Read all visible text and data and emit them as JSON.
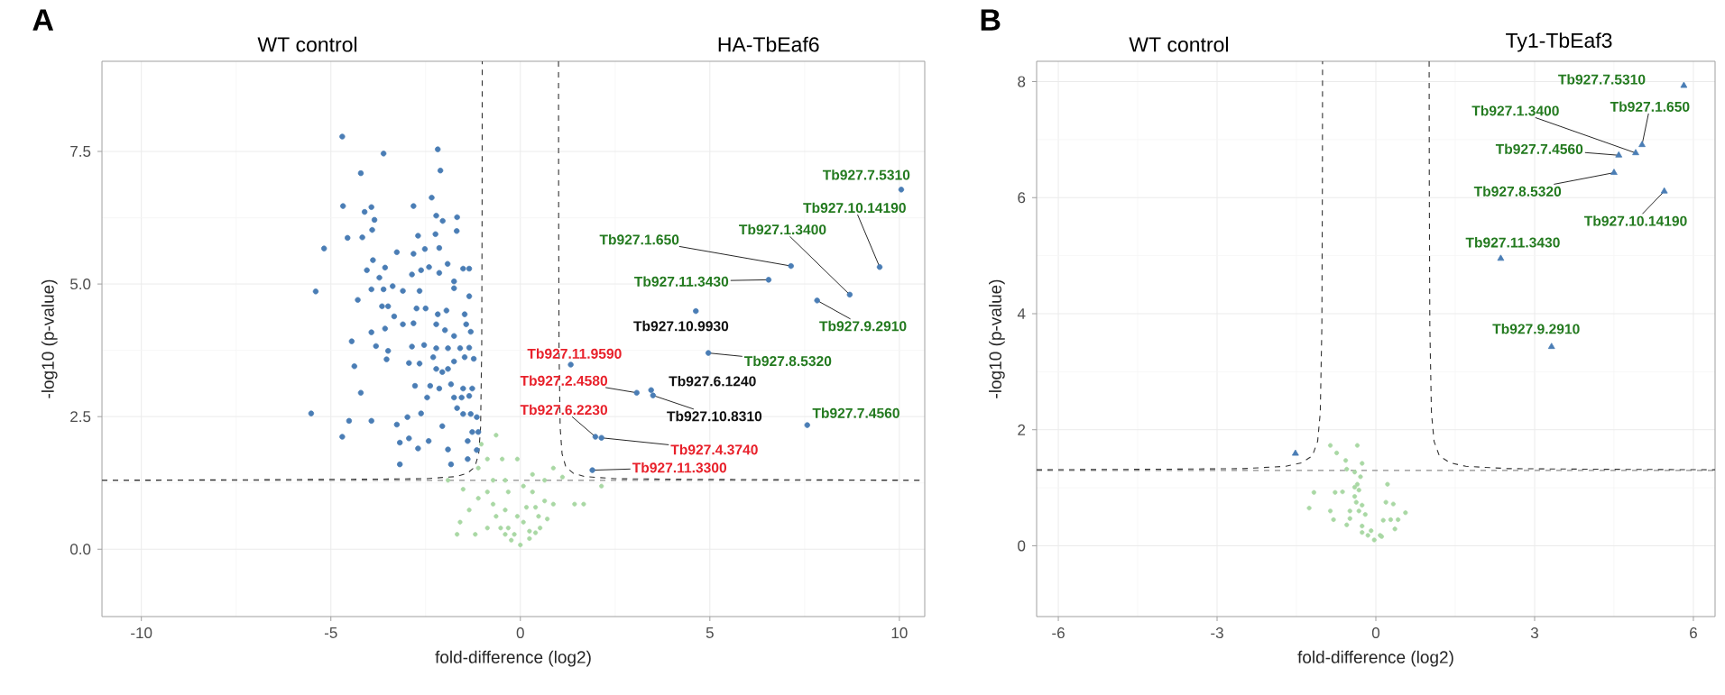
{
  "chart_data": [
    {
      "type": "scatter",
      "xlabel": "fold-difference (log2)",
      "ylabel": "-log10 (p-value)",
      "xlim": [
        -11.04,
        10.67
      ],
      "ylim": [
        -1.27,
        9.2
      ],
      "xticks": [
        -10,
        -5,
        0,
        5,
        10
      ],
      "yticks": [
        {
          "value": 0,
          "label": "0.0"
        },
        {
          "value": 2.5,
          "label": "2.5"
        },
        {
          "value": 5,
          "label": "5.0"
        },
        {
          "value": 7.5,
          "label": "7.5"
        }
      ],
      "grid": true,
      "ref_lines": [
        {
          "axis": "y",
          "value": 1.3,
          "color": "#8c8c8c",
          "line_style": "dashed"
        }
      ],
      "series": [
        {
          "marker": "circle",
          "color": "#a9d8a4",
          "x": [
            -0.4,
            -0.24,
            0.0,
            0.24,
            0.4,
            0.52,
            -0.52,
            -0.64,
            -0.72,
            -0.4,
            -0.08,
            0.16,
            0.4,
            0.64,
            0.32,
            0.08,
            -0.32,
            -0.87,
            -1.11,
            -1.35,
            -1.59,
            -1.51,
            -0.72,
            -0.4,
            0.32,
            0.64,
            0.87,
            1.11,
            1.43,
            1.67,
            2.14,
            -1.67,
            -1.19,
            -0.87,
            0.08,
            0.48,
            -0.32,
            -0.16,
            0.24,
            -0.64,
            -0.87,
            -1.03,
            -0.08,
            -1.11,
            -1.91,
            0.87,
            0.71,
            -0.48
          ],
          "values": [
            0.28,
            0.17,
            0.08,
            0.2,
            0.31,
            0.4,
            0.4,
            0.62,
            0.85,
            0.74,
            0.62,
            0.79,
            0.79,
            0.91,
            1.08,
            1.19,
            1.08,
            1.08,
            0.96,
            0.74,
            0.51,
            1.13,
            1.3,
            1.3,
            1.41,
            1.3,
            1.53,
            1.36,
            0.85,
            0.85,
            1.19,
            0.28,
            0.28,
            0.4,
            0.51,
            0.62,
            0.4,
            0.28,
            0.34,
            2.15,
            1.7,
            1.98,
            1.7,
            1.53,
            1.3,
            0.85,
            0.57,
            1.7
          ]
        },
        {
          "marker": "circle",
          "color": "#4a7db5",
          "x": [
            -4.7,
            -3.61,
            -2.18,
            -2.11,
            -4.21,
            -2.34,
            -4.68,
            -3.93,
            -2.82,
            -4.11,
            -3.85,
            -2.22,
            -2.05,
            -1.67,
            -3.91,
            -4.56,
            -4.17,
            -2.7,
            -2.24,
            -1.68,
            -5.18,
            -3.26,
            -2.82,
            -2.52,
            -2.14,
            -3.89,
            -4.05,
            -3.57,
            -2.62,
            -2.41,
            -1.92,
            -1.51,
            -1.35,
            -3.72,
            -2.86,
            -2.14,
            -5.4,
            -4.29,
            -3.93,
            -3.61,
            -3.37,
            -3.1,
            -2.66,
            -1.75,
            -1.75,
            -1.35,
            -3.65,
            -3.49,
            -2.74,
            -2.5,
            -2.18,
            -1.95,
            -1.47,
            -3.33,
            -3.1,
            -2.82,
            -2.22,
            -1.99,
            -1.75,
            -1.43,
            -1.31,
            -3.93,
            -3.57,
            -4.45,
            -3.81,
            -3.49,
            -2.86,
            -2.54,
            -2.22,
            -1.91,
            -1.59,
            -1.35,
            -2.94,
            -2.66,
            -2.3,
            -1.75,
            -1.47,
            -1.23,
            -4.38,
            -3.53,
            -2.22,
            -2.06,
            -1.91,
            -2.78,
            -2.38,
            -2.14,
            -1.83,
            -1.51,
            -1.27,
            -4.21,
            -2.46,
            -1.75,
            -1.55,
            -1.35,
            -5.52,
            -4.52,
            -3.93,
            -3.26,
            -2.98,
            -2.62,
            -2.06,
            -1.67,
            -1.51,
            -1.31,
            -1.15,
            -4.7,
            -3.18,
            -2.94,
            -2.7,
            -2.42,
            -1.91,
            -1.39,
            -1.27,
            -3.18,
            -1.83,
            -1.39,
            -1.15,
            -1.11,
            10.05,
            9.48,
            8.69,
            7.14,
            6.55,
            7.83,
            4.63,
            4.96,
            1.33,
            3.07,
            3.45,
            1.98,
            3.5,
            7.57,
            2.14,
            1.9
          ],
          "values": [
            7.78,
            7.46,
            7.54,
            7.14,
            7.09,
            6.63,
            6.47,
            6.45,
            6.47,
            6.36,
            6.21,
            6.29,
            6.19,
            6.26,
            6.02,
            5.87,
            5.88,
            5.91,
            5.94,
            6.0,
            5.67,
            5.6,
            5.57,
            5.66,
            5.68,
            5.45,
            5.26,
            5.31,
            5.26,
            5.32,
            5.38,
            5.29,
            5.29,
            5.12,
            5.18,
            5.21,
            4.86,
            4.7,
            4.9,
            4.9,
            4.96,
            4.87,
            4.87,
            4.92,
            5.05,
            4.77,
            4.58,
            4.58,
            4.54,
            4.54,
            4.43,
            4.5,
            4.43,
            4.39,
            4.24,
            4.26,
            4.24,
            4.13,
            4.02,
            4.24,
            4.1,
            4.09,
            4.16,
            3.92,
            3.83,
            3.74,
            3.82,
            3.85,
            3.79,
            3.79,
            3.79,
            3.8,
            3.51,
            3.5,
            3.62,
            3.54,
            3.62,
            3.59,
            3.45,
            3.58,
            3.4,
            3.34,
            3.4,
            3.08,
            3.08,
            3.03,
            3.11,
            3.03,
            3.03,
            2.95,
            2.86,
            2.86,
            2.86,
            2.89,
            2.56,
            2.42,
            2.42,
            2.35,
            2.49,
            2.56,
            2.32,
            2.66,
            2.55,
            2.55,
            2.49,
            2.12,
            2.01,
            2.09,
            1.9,
            2.04,
            1.88,
            2.04,
            2.21,
            1.6,
            1.6,
            1.7,
            1.87,
            2.21,
            6.78,
            5.32,
            4.8,
            5.34,
            5.08,
            4.69,
            4.49,
            3.7,
            3.48,
            2.95,
            3.0,
            2.12,
            2.9,
            2.34,
            2.1,
            1.49
          ]
        },
        {
          "type": "line",
          "line_style": "dashed",
          "color": "#333333",
          "x": [
            -11.04,
            -7,
            -4,
            -2.5,
            -1.7,
            -1.4,
            -1.2,
            -1.1,
            -1.05,
            -1.02,
            -1.01,
            -1.0063
          ],
          "values": [
            1.3,
            1.31,
            1.32,
            1.33,
            1.37,
            1.43,
            1.55,
            1.8,
            2.3,
            3.8,
            6.3,
            9.2
          ]
        },
        {
          "type": "line",
          "line_style": "dashed",
          "color": "#333333",
          "x": [
            1.0063,
            1.01,
            1.02,
            1.05,
            1.1,
            1.2,
            1.4,
            1.7,
            2.5,
            4,
            7,
            10.67
          ],
          "values": [
            9.2,
            6.3,
            3.8,
            2.3,
            1.8,
            1.55,
            1.43,
            1.37,
            1.33,
            1.32,
            1.31,
            1.3
          ]
        }
      ],
      "annotations": [
        "A",
        "WT control",
        "HA-TbEaf6",
        {
          "text": "Tb927.7.5310",
          "x": 10.05,
          "y": 6.78
        },
        {
          "text": "Tb927.10.14190",
          "x": 9.48,
          "y": 5.32
        },
        {
          "text": "Tb927.1.3400",
          "x": 8.69,
          "y": 4.8
        },
        {
          "text": "Tb927.1.650",
          "x": 7.14,
          "y": 5.34
        },
        {
          "text": "Tb927.11.3430",
          "x": 6.55,
          "y": 5.08
        },
        {
          "text": "Tb927.9.2910",
          "x": 7.83,
          "y": 4.69
        },
        {
          "text": "Tb927.10.9930",
          "x": 4.63,
          "y": 4.49
        },
        {
          "text": "Tb927.8.5320",
          "x": 4.96,
          "y": 3.7
        },
        {
          "text": "Tb927.11.9590",
          "x": 1.33,
          "y": 3.48
        },
        {
          "text": "Tb927.2.4580",
          "x": 3.07,
          "y": 2.95
        },
        {
          "text": "Tb927.6.1240",
          "x": 3.45,
          "y": 3.0
        },
        {
          "text": "Tb927.6.2230",
          "x": 1.98,
          "y": 2.12
        },
        {
          "text": "Tb927.10.8310",
          "x": 3.5,
          "y": 2.9
        },
        {
          "text": "Tb927.7.4560",
          "x": 7.57,
          "y": 2.34
        },
        {
          "text": "Tb927.4.3740",
          "x": 2.14,
          "y": 2.1
        },
        {
          "text": "Tb927.11.3300",
          "x": 1.9,
          "y": 1.49
        }
      ]
    },
    {
      "type": "scatter",
      "xlabel": "fold-difference (log2)",
      "ylabel": "-log10 (p-value)",
      "xlim": [
        -6.41,
        6.41
      ],
      "ylim": [
        -1.22,
        8.35
      ],
      "xticks": [
        -6,
        -3,
        0,
        3,
        6
      ],
      "yticks": [
        0,
        2,
        4,
        6,
        8
      ],
      "grid": true,
      "ref_lines": [
        {
          "axis": "y",
          "value": 1.3,
          "color": "#8c8c8c",
          "line_style": "dashed"
        }
      ],
      "series": [
        {
          "marker": "circle",
          "color": "#a9d8a4",
          "x": [
            -0.03,
            -0.15,
            0.08,
            -0.09,
            -0.26,
            -0.2,
            -0.32,
            -0.26,
            -0.37,
            -0.4,
            -0.32,
            -0.35,
            -0.29,
            -0.4,
            -0.55,
            -0.57,
            -0.86,
            -0.74,
            -0.35,
            -0.26,
            -0.77,
            -0.63,
            -1.17,
            -1.26,
            -0.86,
            -0.8,
            -0.49,
            -0.55,
            0.14,
            0.28,
            0.42,
            0.33,
            0.19,
            0.22,
            0.56,
            0.36,
            0.11,
            -0.26,
            -0.4,
            -0.49
          ],
          "values": [
            0.1,
            0.18,
            0.18,
            0.26,
            0.34,
            0.54,
            0.6,
            0.7,
            0.75,
            0.85,
            0.96,
            1.06,
            1.19,
            1.27,
            1.32,
            1.47,
            1.73,
            1.6,
            1.73,
            1.42,
            0.92,
            0.93,
            0.92,
            0.65,
            0.6,
            0.45,
            0.47,
            0.36,
            0.44,
            0.45,
            0.45,
            0.72,
            0.75,
            1.06,
            0.57,
            0.29,
            0.16,
            0.23,
            1.01,
            0.6
          ]
        },
        {
          "marker": "triangle",
          "color": "#4a7db5",
          "x": [
            -1.52,
            5.82,
            5.03,
            4.91,
            4.59,
            4.5,
            5.45,
            2.36,
            3.32
          ],
          "values": [
            1.59,
            7.93,
            6.91,
            6.77,
            6.73,
            6.43,
            6.11,
            4.95,
            3.43
          ]
        },
        {
          "type": "line",
          "line_style": "dashed",
          "color": "#333333",
          "x": [
            -6.41,
            -4,
            -2.5,
            -1.7,
            -1.4,
            -1.2,
            -1.1,
            -1.05,
            -1.02,
            -1.01,
            -1.0071
          ],
          "values": [
            1.31,
            1.32,
            1.33,
            1.37,
            1.43,
            1.55,
            1.8,
            2.3,
            3.8,
            6.3,
            8.35
          ]
        },
        {
          "type": "line",
          "line_style": "dashed",
          "color": "#333333",
          "x": [
            1.0071,
            1.01,
            1.02,
            1.05,
            1.1,
            1.2,
            1.4,
            1.7,
            2.5,
            4,
            6.41
          ],
          "values": [
            8.35,
            6.3,
            3.8,
            2.3,
            1.8,
            1.55,
            1.43,
            1.37,
            1.33,
            1.32,
            1.31
          ]
        }
      ],
      "annotations": [
        "B",
        "WT control",
        "Ty1-TbEaf3",
        {
          "text": "Tb927.7.5310",
          "x": 5.82,
          "y": 7.93
        },
        {
          "text": "Tb927.1.650",
          "x": 5.03,
          "y": 6.91
        },
        {
          "text": "Tb927.1.3400",
          "x": 4.91,
          "y": 6.77
        },
        {
          "text": "Tb927.7.4560",
          "x": 4.59,
          "y": 6.73
        },
        {
          "text": "Tb927.8.5320",
          "x": 4.5,
          "y": 6.43
        },
        {
          "text": "Tb927.10.14190",
          "x": 5.45,
          "y": 6.11
        },
        {
          "text": "Tb927.11.3430",
          "x": 2.36,
          "y": 4.95
        },
        {
          "text": "Tb927.9.2910",
          "x": 3.32,
          "y": 3.43
        }
      ]
    }
  ]
}
